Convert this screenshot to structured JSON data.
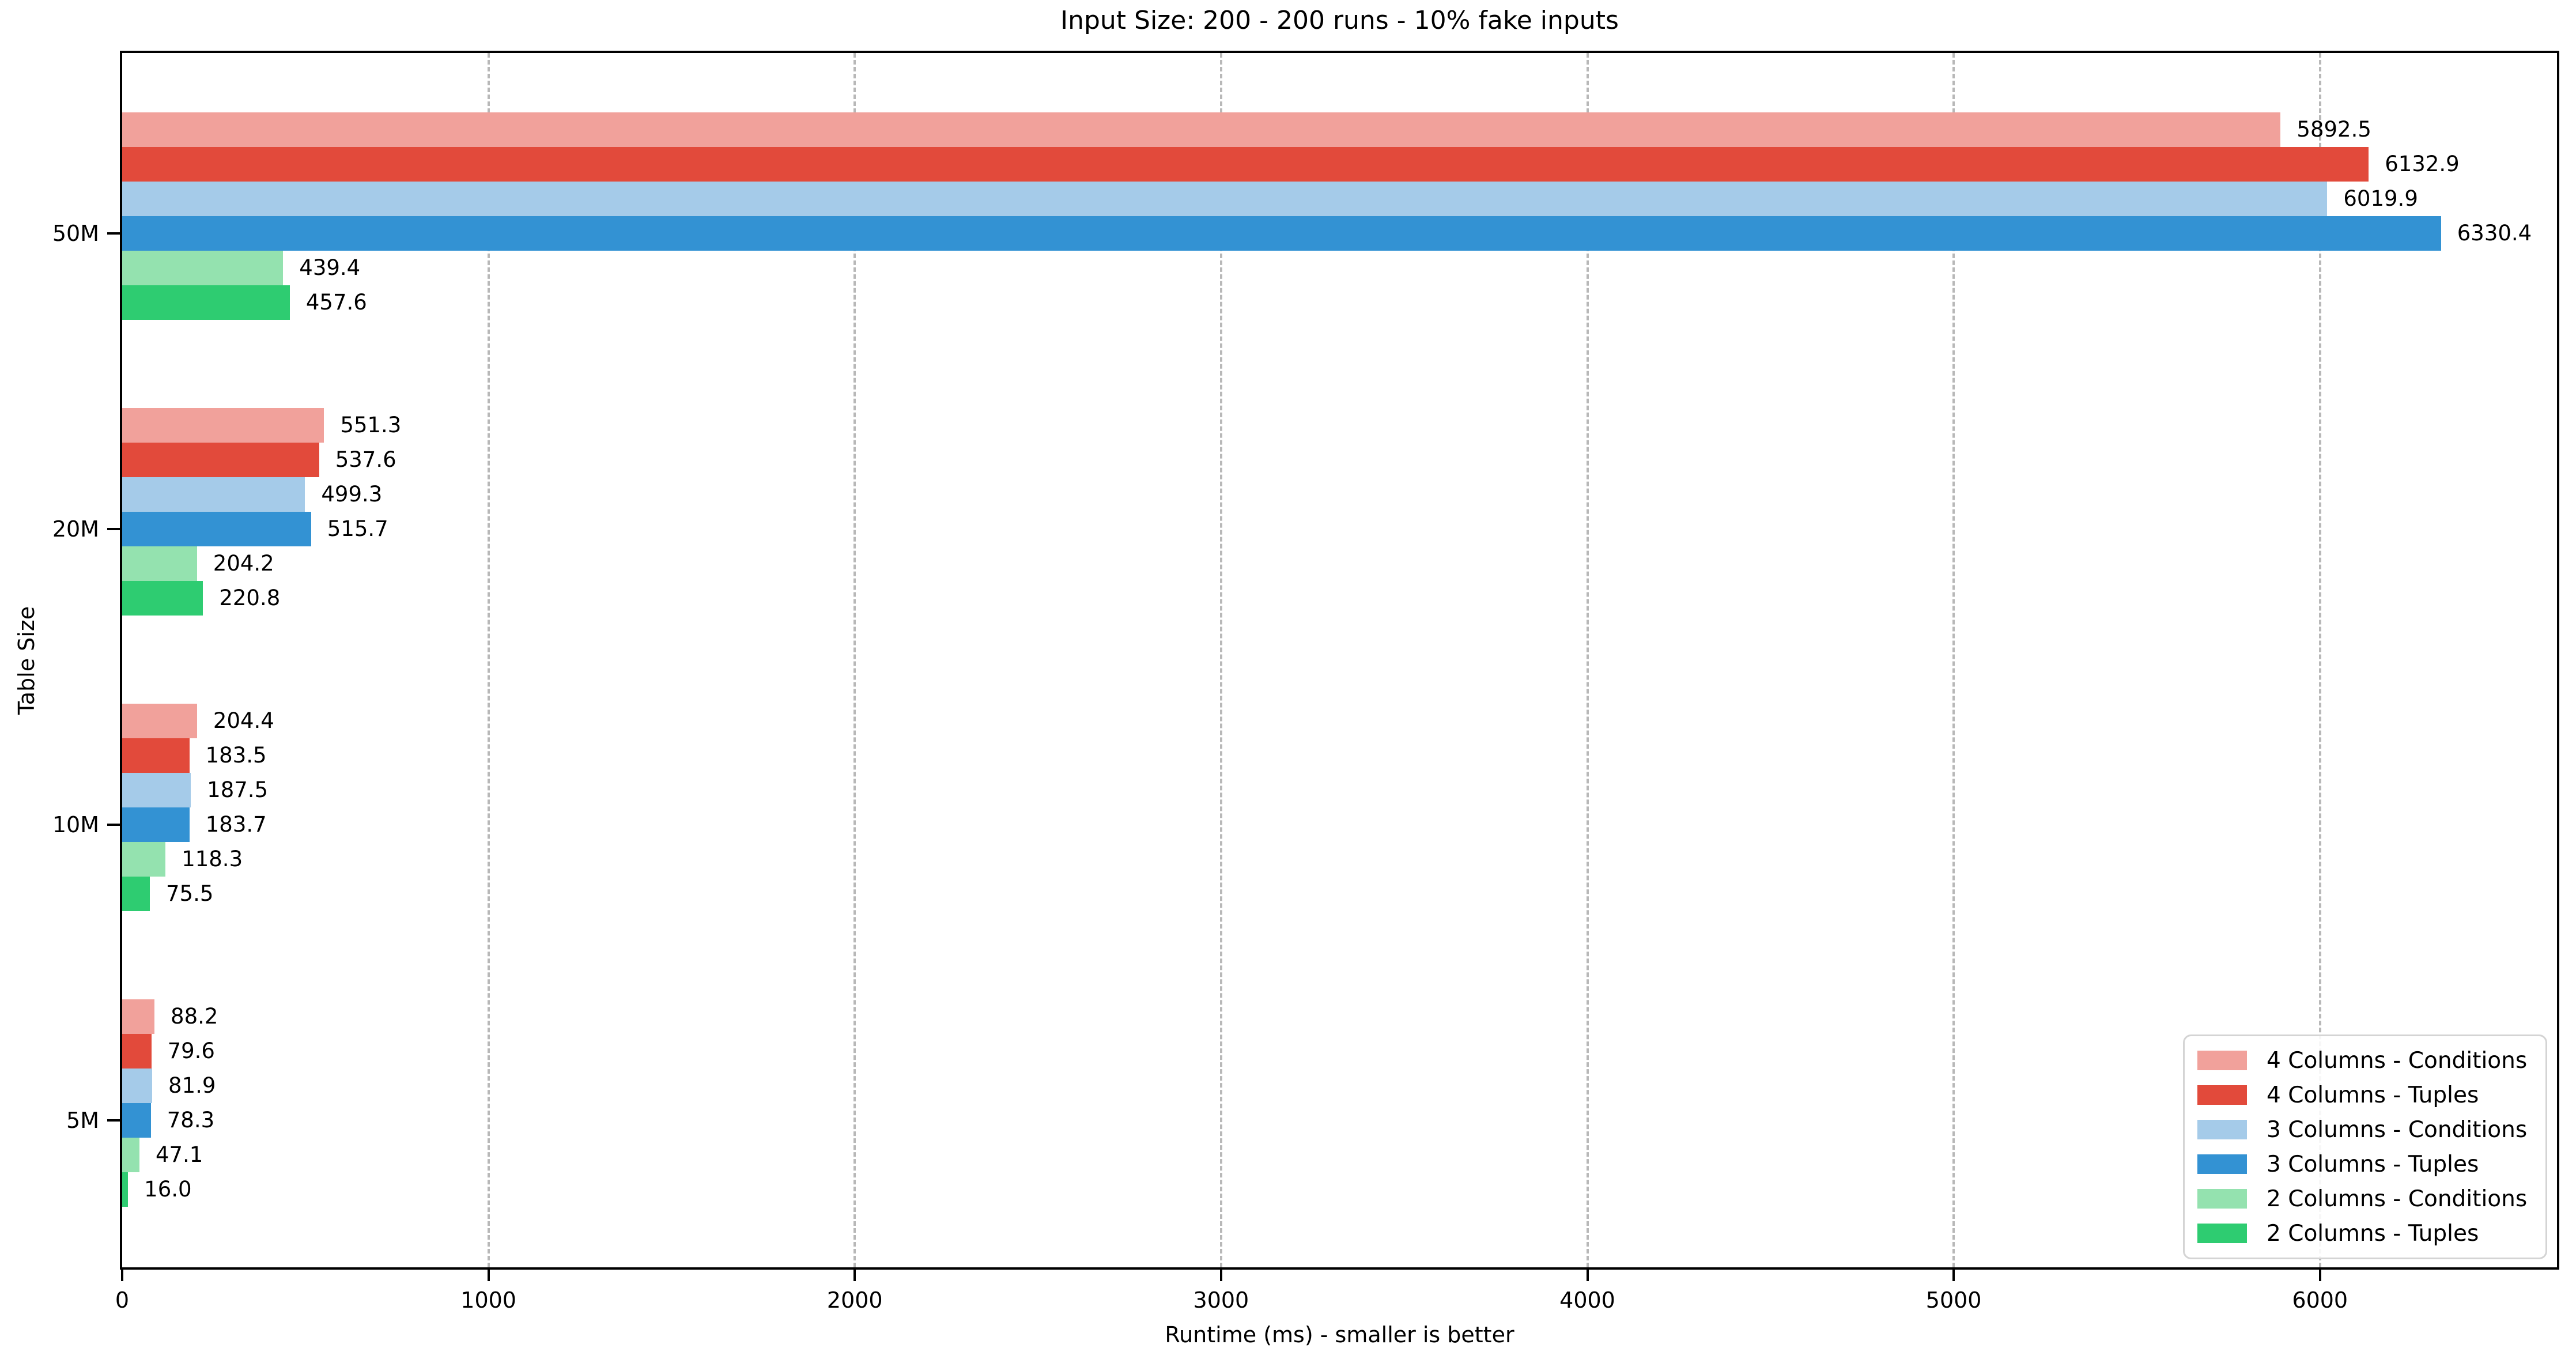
{
  "chart_data": {
    "type": "bar",
    "orientation": "horizontal",
    "title": "Input Size: 200 - 200 runs - 10% fake inputs",
    "xlabel": "Runtime (ms) - smaller is better",
    "ylabel": "Table Size",
    "categories": [
      "50M",
      "20M",
      "10M",
      "5M"
    ],
    "series": [
      {
        "name": "4 Columns - Conditions",
        "color": "#f1a19b",
        "values": [
          5892.5,
          551.3,
          204.4,
          88.2
        ]
      },
      {
        "name": "4 Columns - Tuples",
        "color": "#e24a3b",
        "values": [
          6132.9,
          537.6,
          183.5,
          79.6
        ]
      },
      {
        "name": "3 Columns - Conditions",
        "color": "#a5cbe9",
        "values": [
          6019.9,
          499.3,
          187.5,
          81.9
        ]
      },
      {
        "name": "3 Columns - Tuples",
        "color": "#3392d3",
        "values": [
          6330.4,
          515.7,
          183.7,
          78.3
        ]
      },
      {
        "name": "2 Columns - Conditions",
        "color": "#94e2af",
        "values": [
          439.4,
          204.2,
          118.3,
          47.1
        ]
      },
      {
        "name": "2 Columns - Tuples",
        "color": "#2ecc71",
        "values": [
          457.6,
          220.8,
          75.5,
          16.0
        ]
      }
    ],
    "x_ticks": [
      0,
      1000,
      2000,
      3000,
      4000,
      5000,
      6000
    ],
    "xlim": [
      0,
      6647
    ],
    "grid": "vertical-dashed",
    "gridline_color": "#b8b8b8",
    "legend_position": "lower right",
    "value_label_decimals": 1
  }
}
